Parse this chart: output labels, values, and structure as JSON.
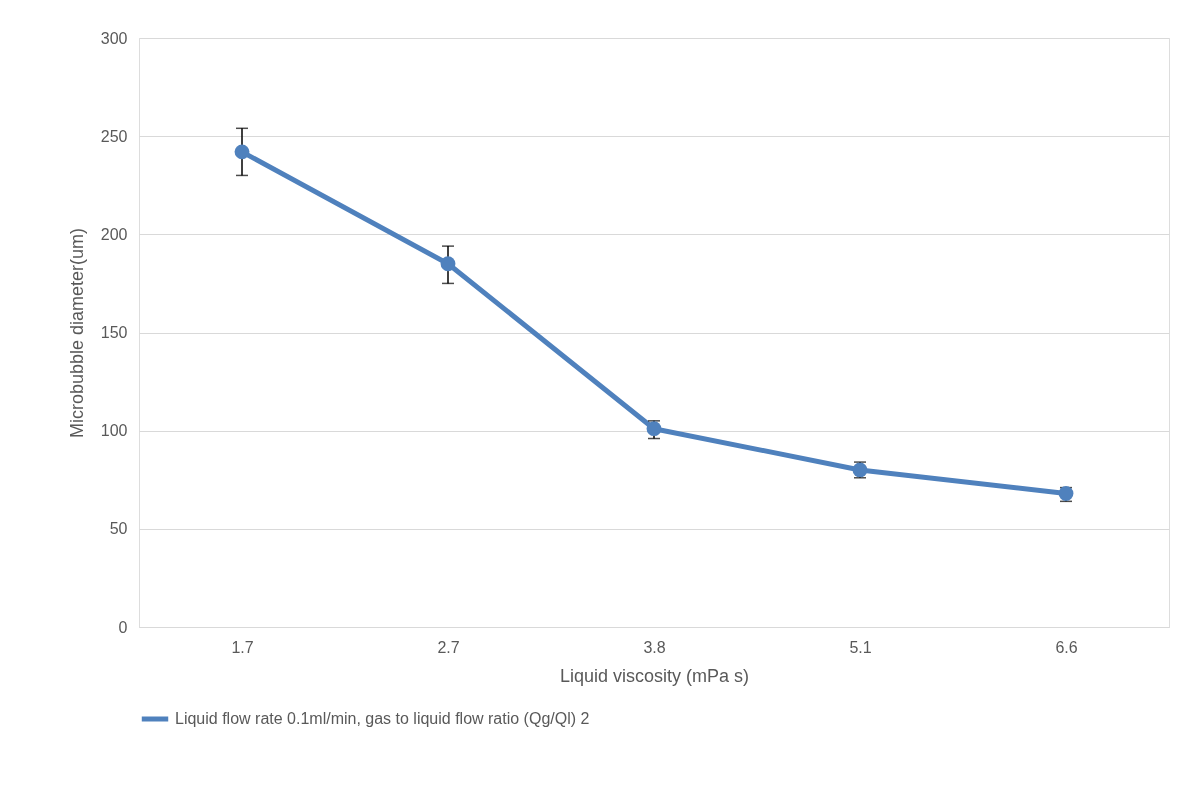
{
  "chart_data": {
    "type": "line",
    "xlabel": "Liquid viscosity (mPa s)",
    "ylabel": "Microbubble diameter(um)",
    "categories": [
      "1.7",
      "2.7",
      "3.8",
      "5.1",
      "6.6"
    ],
    "series": [
      {
        "name": "Liquid flow rate 0.1ml/min, gas to liquid flow ratio (Qg/Ql) 2",
        "color": "#4f81bd",
        "values": [
          242,
          185,
          101,
          80,
          68
        ],
        "errors": [
          [
            230,
            254
          ],
          [
            175,
            194
          ],
          [
            96,
            105
          ],
          [
            76,
            84
          ],
          [
            64,
            71
          ]
        ]
      }
    ],
    "ylim": [
      0,
      300
    ],
    "yticks": [
      0,
      50,
      100,
      150,
      200,
      250,
      300
    ],
    "grid": "y",
    "legend": "bottom",
    "marker": "circle",
    "line_style": "solid"
  }
}
